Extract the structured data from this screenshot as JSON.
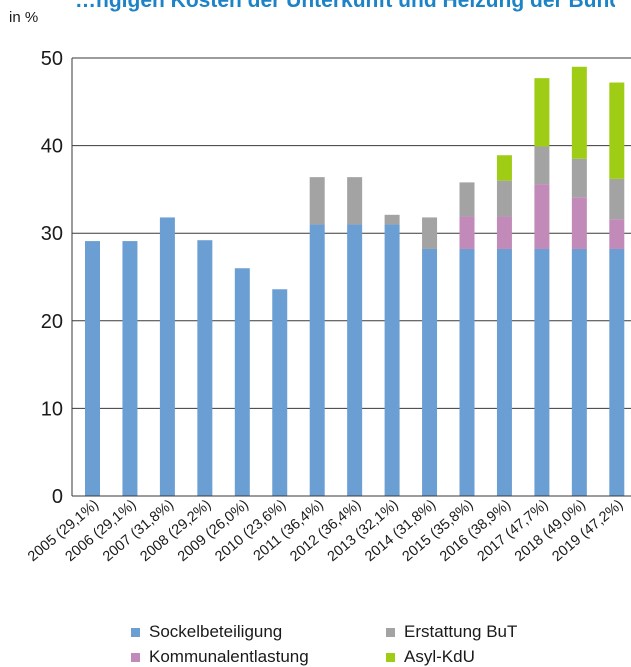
{
  "title": "…ngigen Kosten der Unterkunft und Heizung der Bund beteiligte sich an den Kosten der Unterkunft",
  "unit_label": "in %",
  "colors": {
    "Sockelbeteiligung": "#6b9fd3",
    "Kommunalentlastung": "#c18ab8",
    "Erstattung BuT": "#a3a3a3",
    "Asyl-KdU": "#9fcd16"
  },
  "legend": [
    {
      "name": "Sockelbeteiligung",
      "position": "bottom-left-1"
    },
    {
      "name": "Erstattung BuT",
      "position": "bottom-right-1"
    },
    {
      "name": "Kommunalentlastung",
      "position": "bottom-left-2"
    },
    {
      "name": "Asyl-KdU",
      "position": "bottom-right-2"
    }
  ],
  "chart_data": {
    "type": "bar",
    "stacked": true,
    "categories": [
      "2005 (29,1%)",
      "2006 (29,1%)",
      "2007 (31,8%)",
      "2008 (29,2%)",
      "2009 (26,0%)",
      "2010 (23,6%)",
      "2011 (36,4%)",
      "2012 (36,4%)",
      "2013 (32,1%)",
      "2014 (31,8%)",
      "2015 (35,8%)",
      "2016 (38,9%)",
      "2017 (47,7%)",
      "2018 (49,0%)",
      "2019 (47,2%)"
    ],
    "series": [
      {
        "name": "Sockelbeteiligung",
        "values": [
          29.1,
          29.1,
          31.8,
          29.2,
          26.0,
          23.6,
          31.0,
          31.0,
          31.0,
          28.2,
          28.2,
          28.2,
          28.2,
          28.2,
          28.2
        ]
      },
      {
        "name": "Kommunalentlastung",
        "values": [
          0,
          0,
          0,
          0,
          0,
          0,
          0,
          0,
          0,
          0,
          3.7,
          3.7,
          7.4,
          5.9,
          3.4
        ]
      },
      {
        "name": "Erstattung BuT",
        "values": [
          0,
          0,
          0,
          0,
          0,
          0,
          5.4,
          5.4,
          1.1,
          3.6,
          3.9,
          4.1,
          4.3,
          4.4,
          4.6
        ]
      },
      {
        "name": "Asyl-KdU",
        "values": [
          0,
          0,
          0,
          0,
          0,
          0,
          0,
          0,
          0,
          0,
          0,
          2.9,
          7.8,
          10.5,
          11.0
        ]
      }
    ],
    "ylabel": "in %",
    "ylim": [
      0,
      50
    ],
    "yticks": [
      0,
      10,
      20,
      30,
      40,
      50
    ],
    "grid": true,
    "legend_position": "bottom"
  }
}
